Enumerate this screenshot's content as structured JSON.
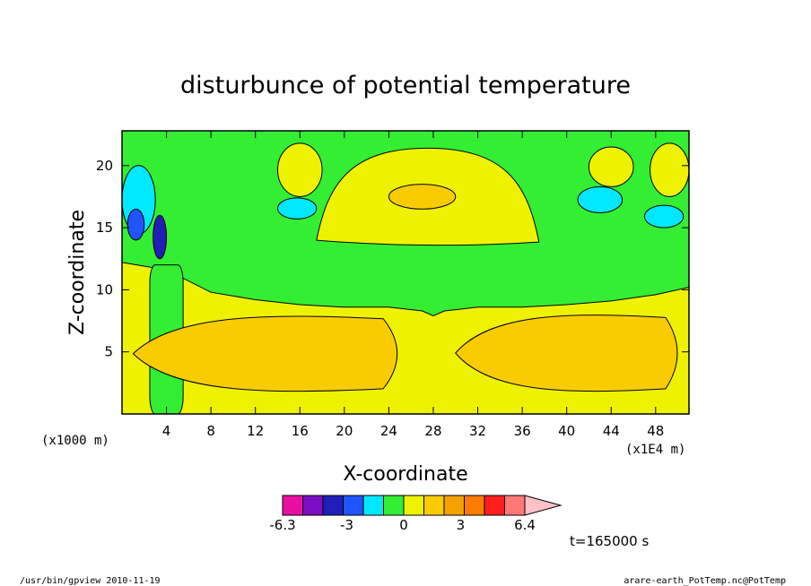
{
  "chart_data": {
    "type": "heatmap",
    "title": "disturbunce of potential temperature",
    "xlabel": "X-coordinate",
    "ylabel": "Z-coordinate",
    "x_unit": "(x1E4 m)",
    "y_unit": "(x1000 m)",
    "xlim": [
      0,
      51
    ],
    "ylim": [
      0,
      22.8
    ],
    "x_ticks": [
      4,
      8,
      12,
      16,
      20,
      24,
      28,
      32,
      36,
      40,
      44,
      48
    ],
    "y_ticks": [
      5,
      10,
      15,
      20
    ],
    "background_level": "0 to 1.1 (yellow)",
    "regions": [
      {
        "level": "-1.1 to 0 (green)",
        "color": "#33ee33",
        "shape": "band",
        "x": [
          0,
          51
        ],
        "z_bottom_edge_x": [
          0,
          4,
          8,
          12,
          16,
          20,
          24,
          27,
          28,
          29,
          32,
          36,
          40,
          44,
          48,
          51
        ],
        "z_bottom": [
          12.2,
          11.6,
          9.8,
          9.2,
          8.8,
          8.6,
          8.6,
          8.3,
          7.9,
          8.3,
          8.6,
          8.6,
          8.8,
          9.1,
          9.6,
          10.2
        ],
        "z_top": [
          22.8,
          22.8,
          22.8,
          22.8,
          22.8,
          22.8,
          22.8,
          22.8,
          22.8,
          22.8,
          22.8,
          22.8,
          22.8,
          22.8,
          22.8,
          22.8
        ]
      },
      {
        "level": "-1.1 to 0 (green)",
        "color": "#33ee33",
        "shape": "column",
        "x": [
          2.5,
          5.5
        ],
        "z": [
          0,
          12
        ]
      },
      {
        "level": "1.1 to 2.1 (light orange)",
        "color": "#f8cc00",
        "shape": "lobe",
        "x": [
          1,
          26
        ],
        "z": [
          1.6,
          8.1
        ]
      },
      {
        "level": "1.1 to 2.1 (light orange)",
        "color": "#f8cc00",
        "shape": "lobe",
        "x": [
          30,
          51
        ],
        "z": [
          1.6,
          8.2
        ]
      },
      {
        "level": "0 to 1.1 (yellow)",
        "color": "#eef200",
        "shape": "cap",
        "x": [
          17.5,
          37.5
        ],
        "z": [
          13.7,
          21.4
        ]
      },
      {
        "level": "0 to 1.1 (yellow)",
        "color": "#eef200",
        "shape": "blob",
        "x": [
          14,
          18
        ],
        "z": [
          17.5,
          21.8
        ]
      },
      {
        "level": "0 to 1.1 (yellow)",
        "color": "#eef200",
        "shape": "blob",
        "x": [
          42,
          46
        ],
        "z": [
          18.3,
          21.5
        ]
      },
      {
        "level": "0 to 1.1 (yellow)",
        "color": "#eef200",
        "shape": "blob",
        "x": [
          47.5,
          51
        ],
        "z": [
          17.5,
          21.8
        ]
      },
      {
        "level": "1.1 to 2.1 (light orange)",
        "color": "#f8cc00",
        "shape": "blob",
        "x": [
          24,
          30
        ],
        "z": [
          16.5,
          18.5
        ]
      },
      {
        "level": "-2.1 to -1.1 (cyan)",
        "color": "#00e8ff",
        "shape": "blob",
        "x": [
          14,
          17.5
        ],
        "z": [
          15.7,
          17.4
        ]
      },
      {
        "level": "-2.1 to -1.1 (cyan)",
        "color": "#00e8ff",
        "shape": "blob",
        "x": [
          41,
          45
        ],
        "z": [
          16.2,
          18.3
        ]
      },
      {
        "level": "-2.1 to -1.1 (cyan)",
        "color": "#00e8ff",
        "shape": "blob",
        "x": [
          47,
          50.5
        ],
        "z": [
          15,
          16.8
        ]
      },
      {
        "level": "-2.1 to -1.1 (cyan)",
        "color": "#00e8ff",
        "shape": "blob",
        "x": [
          0,
          3
        ],
        "z": [
          14.5,
          20
        ]
      },
      {
        "level": "-3.2 to -2.1 (blue)",
        "color": "#2054ff",
        "shape": "blob",
        "x": [
          0.5,
          2
        ],
        "z": [
          14,
          16.5
        ]
      },
      {
        "level": "-4.2 to -3.2 (navy)",
        "color": "#1f1fb8",
        "shape": "blob",
        "x": [
          2.8,
          4
        ],
        "z": [
          12.5,
          16
        ]
      }
    ],
    "colorbar": {
      "levels": [
        -6.3,
        -5.3,
        -4.2,
        -3.2,
        -2.1,
        -1.1,
        0,
        1.1,
        2.1,
        3.2,
        4.2,
        5.3,
        6.4
      ],
      "tick_labels": [
        "-6.3",
        "-3",
        "0",
        "3",
        "6.4"
      ],
      "colors": [
        "#ea0fa3",
        "#7b0ec2",
        "#1f1fb8",
        "#2054ff",
        "#00e8ff",
        "#33ee33",
        "#eef200",
        "#f8cc00",
        "#f5a100",
        "#ff7a00",
        "#ff1e1e",
        "#ff7878",
        "#ffc0c8"
      ]
    },
    "time_label": "t=165000 s",
    "footer_left": "/usr/bin/gpview  2010-11-19",
    "footer_right": "arare-earth_PotTemp.nc@PotTemp"
  }
}
